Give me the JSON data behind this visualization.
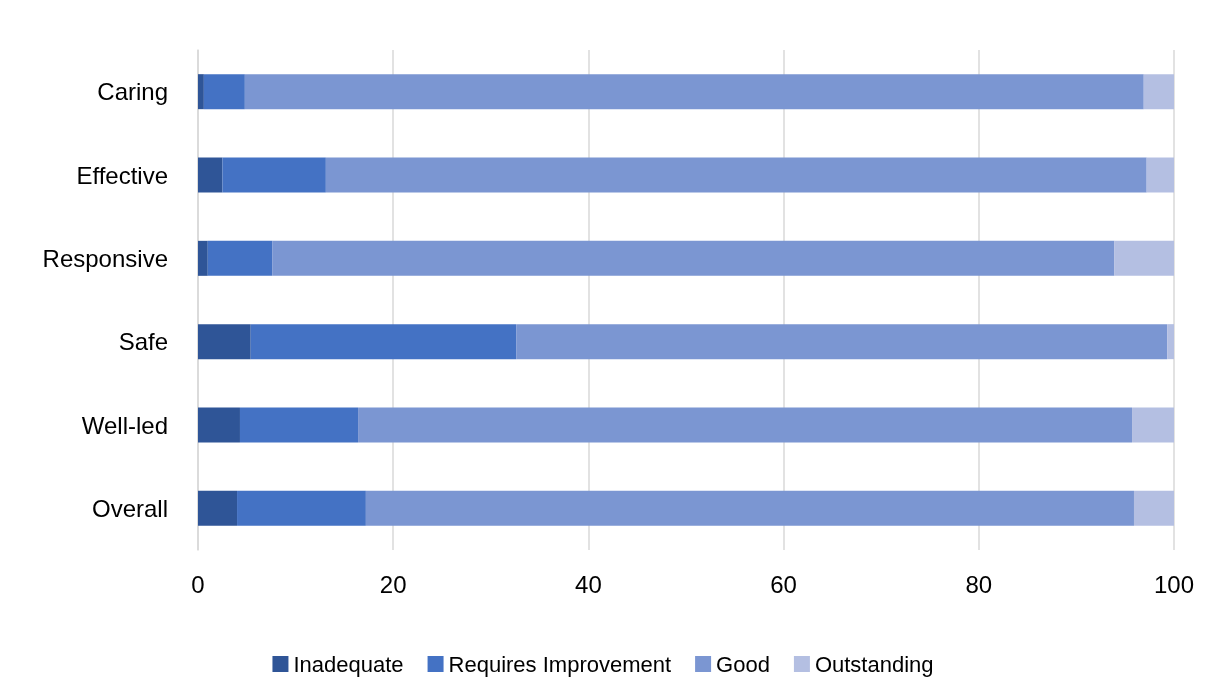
{
  "chart_data": {
    "type": "bar",
    "orientation": "horizontal",
    "stacked": true,
    "categories": [
      "Caring",
      "Effective",
      "Responsive",
      "Safe",
      "Well-led",
      "Overall"
    ],
    "series": [
      {
        "name": "Inadequate",
        "color": "#2f5597",
        "values": [
          0.6,
          2.5,
          1.0,
          5.4,
          4.3,
          4.0
        ]
      },
      {
        "name": "Requires Improvement",
        "color": "#4472c4",
        "values": [
          4.2,
          10.6,
          6.6,
          27.2,
          12.1,
          13.2
        ]
      },
      {
        "name": "Good",
        "color": "#7b96d2",
        "values": [
          92.1,
          84.1,
          86.3,
          66.7,
          79.3,
          78.7
        ]
      },
      {
        "name": "Outstanding",
        "color": "#b4bfe2",
        "values": [
          3.1,
          2.8,
          6.1,
          0.7,
          4.3,
          4.1
        ]
      }
    ],
    "xlim": [
      0,
      100
    ],
    "xticks": [
      0,
      20,
      40,
      60,
      80,
      100
    ],
    "grid": "x",
    "legend": "bottom"
  }
}
